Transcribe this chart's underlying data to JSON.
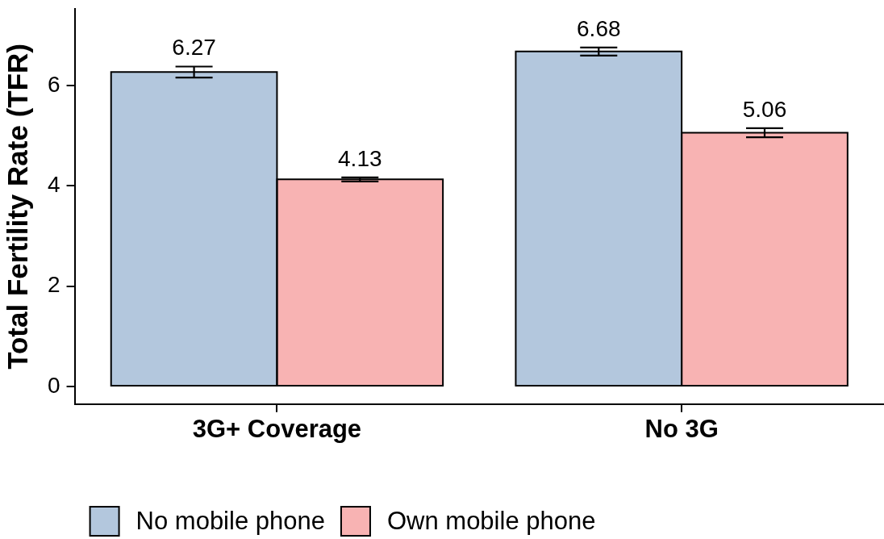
{
  "chart_data": {
    "type": "bar",
    "ylabel": "Total Fertility Rate (TFR)",
    "categories": [
      "3G+ Coverage",
      "No 3G"
    ],
    "series": [
      {
        "name": "No mobile phone",
        "color": "#b3c7dd",
        "values": [
          6.27,
          6.68
        ],
        "errors": [
          0.11,
          0.08
        ]
      },
      {
        "name": "Own mobile phone",
        "color": "#f8b3b3",
        "values": [
          4.13,
          5.06
        ],
        "errors": [
          0.04,
          0.09
        ]
      }
    ],
    "ylim": [
      -0.35,
      7.53
    ],
    "yticks": [
      0,
      2,
      4,
      6
    ],
    "grid": false,
    "legend": "bottom",
    "data_labels": true
  }
}
